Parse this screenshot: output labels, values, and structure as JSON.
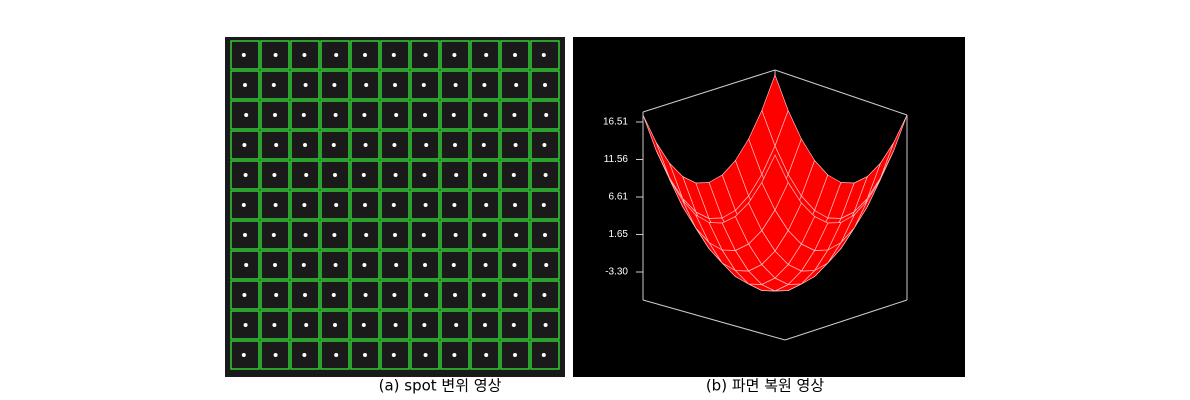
{
  "figure": {
    "panels": [
      {
        "caption": "(a) spot 변위 영상"
      },
      {
        "caption": "(b) 파면 복원 영상",
        "z_tick_labels": [
          "16.51",
          "11.56",
          "6.61",
          "1.65",
          "-3.30"
        ]
      }
    ]
  }
}
